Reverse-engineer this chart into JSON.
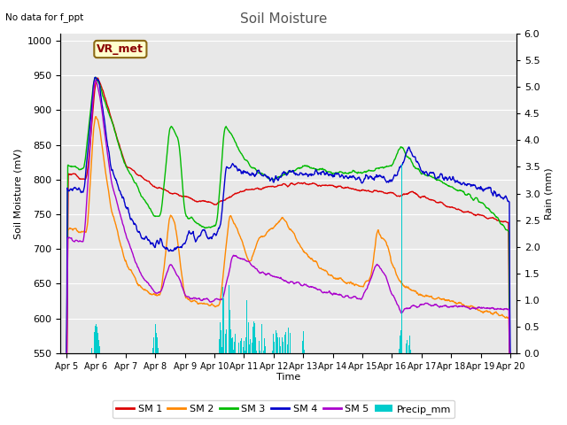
{
  "title": "Soil Moisture",
  "top_left_text": "No data for f_ppt",
  "annotation_box": "VR_met",
  "ylabel_left": "Soil Moisture (mV)",
  "ylabel_right": "Rain (mm)",
  "xlabel": "Time",
  "ylim_left": [
    550,
    1010
  ],
  "ylim_right": [
    0.0,
    6.0
  ],
  "yticks_left": [
    550,
    600,
    650,
    700,
    750,
    800,
    850,
    900,
    950,
    1000
  ],
  "yticks_right": [
    0.0,
    0.5,
    1.0,
    1.5,
    2.0,
    2.5,
    3.0,
    3.5,
    4.0,
    4.5,
    5.0,
    5.5,
    6.0
  ],
  "colors": {
    "SM1": "#dd0000",
    "SM2": "#ff8800",
    "SM3": "#00bb00",
    "SM4": "#0000cc",
    "SM5": "#aa00cc",
    "precip": "#00cccc",
    "fig_bg": "#ffffff",
    "plot_bg": "#e8e8e8",
    "grid_color": "#ffffff"
  },
  "legend": [
    "SM 1",
    "SM 2",
    "SM 3",
    "SM 4",
    "SM 5",
    "Precip_mm"
  ],
  "n_points": 960,
  "x_tick_labels": [
    "Apr 5",
    "Apr 6",
    "Apr 7",
    "Apr 8",
    "Apr 9",
    "Apr 10",
    "Apr 11",
    "Apr 12",
    "Apr 13",
    "Apr 14",
    "Apr 15",
    "Apr 16",
    "Apr 17",
    "Apr 18",
    "Apr 19",
    "Apr 20"
  ]
}
